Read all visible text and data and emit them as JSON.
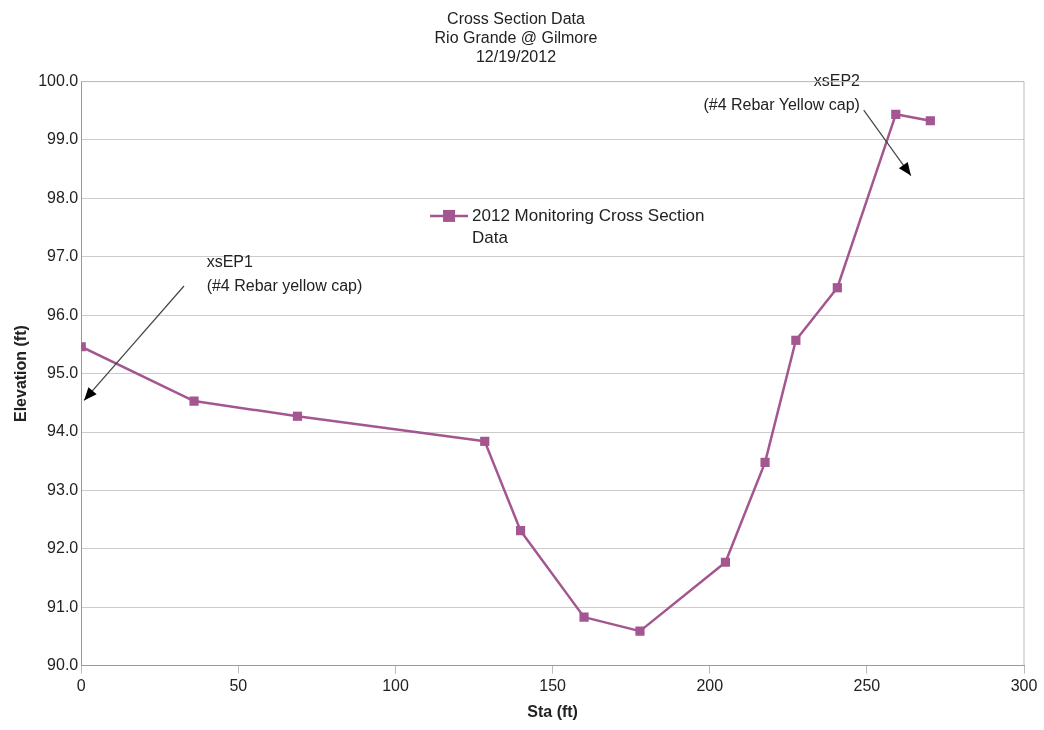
{
  "chart_data": {
    "type": "line",
    "title": "Cross Section Data\nRio Grande @ Gilmore\n12/19/2012",
    "xlabel": "Sta (ft)",
    "ylabel": "Elevation (ft)",
    "x": [
      0,
      35.9,
      68.8,
      128.4,
      139.8,
      160.0,
      177.8,
      205.0,
      217.6,
      227.4,
      240.6,
      259.2,
      270.2
    ],
    "series": [
      {
        "name": "2012 Monitoring Cross Section Data",
        "color": "#a3568f",
        "values": [
          95.46,
          94.53,
          94.27,
          93.84,
          92.31,
          90.83,
          90.59,
          91.77,
          93.48,
          95.57,
          96.47,
          99.44,
          99.33
        ]
      }
    ],
    "xlim": [
      0,
      300
    ],
    "xticks": [
      0,
      50,
      100,
      150,
      200,
      250,
      300
    ],
    "ylim": [
      90,
      100
    ],
    "yticks": [
      {
        "value": 90,
        "label": "90.0"
      },
      {
        "value": 91,
        "label": "91.0"
      },
      {
        "value": 92,
        "label": "92.0"
      },
      {
        "value": 93,
        "label": "93.0"
      },
      {
        "value": 94,
        "label": "94.0"
      },
      {
        "value": 95,
        "label": "95.0"
      },
      {
        "value": 96,
        "label": "96.0"
      },
      {
        "value": 97,
        "label": "97.0"
      },
      {
        "value": 98,
        "label": "98.0"
      },
      {
        "value": 99,
        "label": "99.0"
      },
      {
        "value": 100,
        "label": "100.0"
      }
    ],
    "grid": "y",
    "legend": "top",
    "marker": "square",
    "line_style": "solid",
    "annotations": [
      "xsEP1\n(#4 Rebar yellow cap)",
      "xsEP2\n(#4 Rebar Yellow cap)"
    ]
  }
}
